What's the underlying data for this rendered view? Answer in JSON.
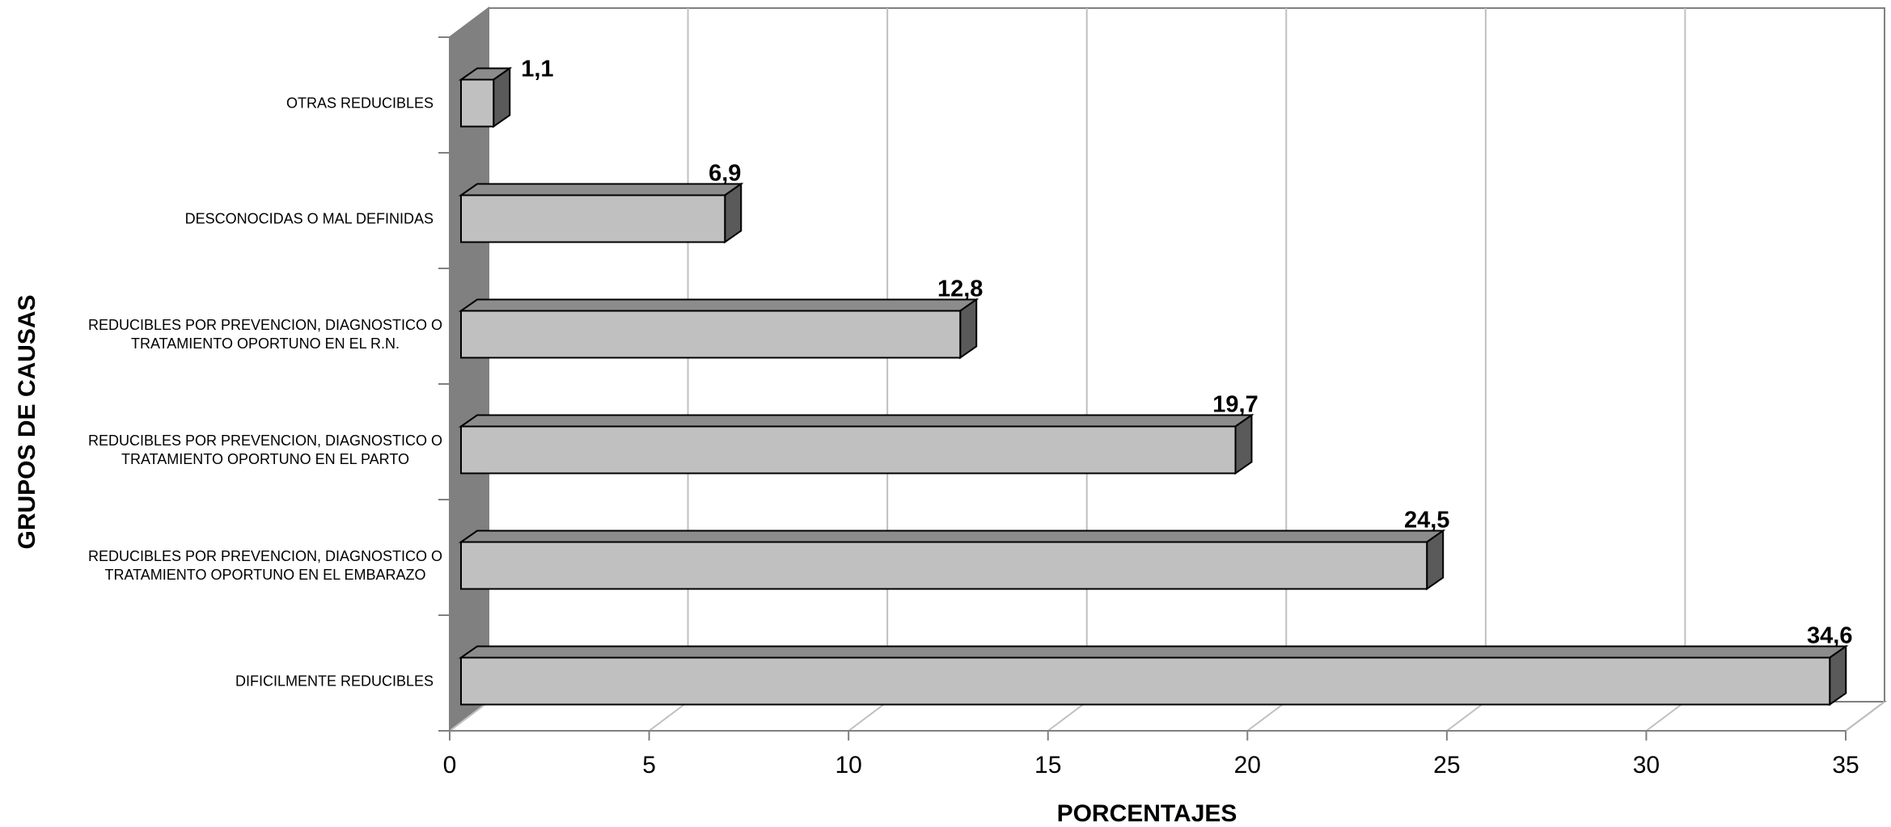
{
  "chart_data": {
    "type": "bar",
    "orientation": "horizontal",
    "style": "3d",
    "categories": [
      [
        "DIFICILMENTE REDUCIBLES"
      ],
      [
        "REDUCIBLES POR PREVENCION, DIAGNOSTICO O",
        "TRATAMIENTO OPORTUNO EN EL EMBARAZO"
      ],
      [
        "REDUCIBLES POR PREVENCION, DIAGNOSTICO O",
        "TRATAMIENTO OPORTUNO EN EL PARTO"
      ],
      [
        "REDUCIBLES POR PREVENCION, DIAGNOSTICO O",
        "TRATAMIENTO OPORTUNO EN EL R.N."
      ],
      [
        "DESCONOCIDAS O MAL DEFINIDAS"
      ],
      [
        "OTRAS REDUCIBLES"
      ]
    ],
    "values": [
      34.6,
      24.5,
      19.7,
      12.8,
      6.9,
      1.1
    ],
    "data_labels": [
      "34,6",
      "24,5",
      "19,7",
      "12,8",
      "6,9",
      "1,1"
    ],
    "xlabel": "PORCENTAJES",
    "ylabel": "GRUPOS DE CAUSAS",
    "xlim": [
      0,
      35
    ],
    "xticks": [
      0,
      5,
      10,
      15,
      20,
      25,
      30,
      35
    ],
    "grid": "vertical",
    "legend": "none",
    "colors": {
      "bar_front": "#c0c0c0",
      "bar_top": "#8c8c8c",
      "bar_side": "#5a5a5a",
      "wall": "#808080",
      "gridline": "#c0c0c0",
      "axis": "#808080"
    }
  }
}
